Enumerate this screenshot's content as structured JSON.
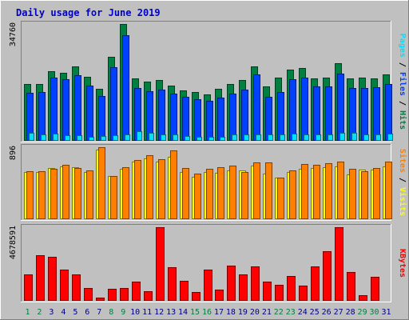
{
  "chart_data": {
    "type": "bar",
    "title": "Daily usage for June 2019",
    "categories": [
      "1",
      "2",
      "3",
      "4",
      "5",
      "6",
      "7",
      "8",
      "9",
      "10",
      "11",
      "12",
      "13",
      "14",
      "15",
      "16",
      "17",
      "18",
      "19",
      "20",
      "21",
      "22",
      "23",
      "24",
      "25",
      "26",
      "27",
      "28",
      "29",
      "30",
      "31"
    ],
    "weekend_days": [
      "1",
      "2",
      "8",
      "9",
      "15",
      "16",
      "22",
      "23",
      "29",
      "30"
    ],
    "panels": [
      {
        "id": "top",
        "ymax_label": "34760",
        "ymax": 34760,
        "series": [
          {
            "name": "Hits",
            "color": "#008040",
            "values": [
              16900,
              17000,
              20800,
              20200,
              22100,
              19000,
              15400,
              24900,
              34760,
              18500,
              17500,
              18100,
              16500,
              15100,
              14600,
              13900,
              15400,
              16800,
              18200,
              22100,
              16100,
              18800,
              21100,
              21700,
              18500,
              18700,
              23100,
              18500,
              18800,
              18600,
              19800
            ]
          },
          {
            "name": "Files",
            "color": "#0040ff",
            "values": [
              14200,
              14500,
              18700,
              18400,
              19600,
              16500,
              13300,
              22000,
              31400,
              15600,
              14700,
              15300,
              14100,
              13000,
              12400,
              11900,
              12900,
              14000,
              15300,
              19700,
              13000,
              14500,
              18300,
              18900,
              16300,
              16200,
              20100,
              15700,
              15600,
              15900,
              17000
            ]
          },
          {
            "name": "Pages",
            "color": "#00e0ff",
            "values": [
              2400,
              2000,
              2200,
              1600,
              1600,
              1300,
              1400,
              1600,
              1900,
              2800,
              2300,
              2000,
              2000,
              1500,
              1300,
              1300,
              1300,
              1800,
              1900,
              2000,
              1800,
              1800,
              2200,
              2000,
              2000,
              1900,
              2300,
              2300,
              2000,
              1800,
              2100
            ]
          }
        ]
      },
      {
        "id": "middle",
        "ymax_label": "896",
        "ymax": 896,
        "series": [
          {
            "name": "Visits",
            "color": "#ffff00",
            "values": [
              586,
              591,
              636,
              660,
              647,
              585,
              869,
              538,
              632,
              718,
              753,
              715,
              772,
              590,
              524,
              585,
              578,
              608,
              612,
              670,
              565,
              520,
              586,
              624,
              641,
              643,
              653,
              555,
              614,
              613,
              654
            ]
          },
          {
            "name": "Sites",
            "color": "#ff8000",
            "values": [
              593,
              595,
              625,
              680,
              636,
              612,
              896,
              537,
              646,
              738,
              800,
              744,
              856,
              634,
              567,
              628,
              651,
              667,
              585,
              709,
              708,
              520,
              606,
              683,
              672,
              699,
              718,
              632,
              598,
              636,
              712
            ]
          }
        ]
      },
      {
        "id": "bottom",
        "ymax_label": "4678591",
        "ymax": 4678591,
        "series": [
          {
            "name": "KBytes",
            "color": "#ff0000",
            "values": [
              1660000,
              2900000,
              2820000,
              1980000,
              1660000,
              820000,
              200000,
              740000,
              820000,
              1220000,
              620000,
              4678591,
              2160000,
              1280000,
              540000,
              1980000,
              720000,
              2220000,
              1660000,
              2200000,
              1200000,
              1040000,
              1580000,
              980000,
              2200000,
              3160000,
              4678591,
              1840000,
              360000,
              1520000,
              0
            ]
          }
        ]
      }
    ],
    "right_labels": [
      {
        "panel": "top",
        "parts": [
          {
            "text": "Pages",
            "color": "#00e0ff"
          },
          {
            "text": " / ",
            "color": "#000000"
          },
          {
            "text": "Files",
            "color": "#0040ff"
          },
          {
            "text": " / ",
            "color": "#000000"
          },
          {
            "text": "Hits",
            "color": "#008040"
          }
        ]
      },
      {
        "panel": "middle",
        "parts": [
          {
            "text": "Sites",
            "color": "#ff8000"
          },
          {
            "text": " / ",
            "color": "#000000"
          },
          {
            "text": "Visits",
            "color": "#ffff00"
          }
        ]
      },
      {
        "panel": "bottom",
        "parts": [
          {
            "text": "KBytes",
            "color": "#ff0000"
          }
        ]
      }
    ],
    "colors": {
      "background": "#c0c0c0",
      "title": "#0000cc",
      "weekday_label": "#000080",
      "weekend_label": "#008040",
      "grid": "#808080"
    }
  }
}
